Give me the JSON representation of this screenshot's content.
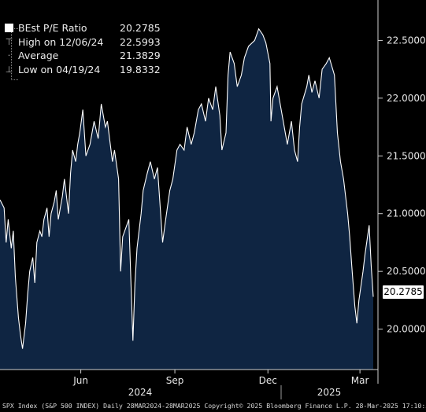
{
  "chart_data": {
    "type": "area",
    "title": "",
    "xlabel": "",
    "ylabel": "",
    "ylim": [
      19.65,
      22.85
    ],
    "y_ticks": [
      "20.0000",
      "20.5000",
      "21.0000",
      "21.5000",
      "22.0000",
      "22.5000"
    ],
    "x_tick_labels": [
      "Jun",
      "Sep",
      "Dec",
      "Mar"
    ],
    "x_year_labels": [
      "2024",
      "2025"
    ],
    "grid": false,
    "legend_placement": "top-left",
    "colors": {
      "fill": "#0f2542",
      "line": "#ffffff",
      "background": "#000000"
    },
    "legend": [
      {
        "label": "BEst P/E Ratio",
        "value": "20.2785",
        "icon": "white-square-icon"
      },
      {
        "label": "High on 12/06/24",
        "value": "22.5993",
        "icon": "high-marker-icon"
      },
      {
        "label": "Average",
        "value": "21.3829",
        "icon": "average-marker-icon"
      },
      {
        "label": "Low on 04/19/24",
        "value": "19.8332",
        "icon": "low-marker-icon"
      }
    ],
    "last_value_label": "20.2785",
    "series": [
      {
        "name": "BEst P/E Ratio",
        "x": [
          "2024-03-28",
          "2024-04-01",
          "2024-04-03",
          "2024-04-05",
          "2024-04-08",
          "2024-04-10",
          "2024-04-12",
          "2024-04-15",
          "2024-04-17",
          "2024-04-19",
          "2024-04-22",
          "2024-04-24",
          "2024-04-26",
          "2024-04-29",
          "2024-05-01",
          "2024-05-03",
          "2024-05-06",
          "2024-05-08",
          "2024-05-10",
          "2024-05-13",
          "2024-05-15",
          "2024-05-17",
          "2024-05-20",
          "2024-05-22",
          "2024-05-24",
          "2024-05-28",
          "2024-05-30",
          "2024-06-03",
          "2024-06-05",
          "2024-06-07",
          "2024-06-10",
          "2024-06-12",
          "2024-06-14",
          "2024-06-17",
          "2024-06-20",
          "2024-06-24",
          "2024-06-26",
          "2024-06-28",
          "2024-07-02",
          "2024-07-05",
          "2024-07-09",
          "2024-07-11",
          "2024-07-16",
          "2024-07-18",
          "2024-07-22",
          "2024-07-24",
          "2024-07-26",
          "2024-07-30",
          "2024-08-01",
          "2024-08-05",
          "2024-08-07",
          "2024-08-09",
          "2024-08-13",
          "2024-08-15",
          "2024-08-19",
          "2024-08-22",
          "2024-08-26",
          "2024-08-29",
          "2024-09-03",
          "2024-09-06",
          "2024-09-10",
          "2024-09-13",
          "2024-09-17",
          "2024-09-20",
          "2024-09-24",
          "2024-09-27",
          "2024-10-01",
          "2024-10-04",
          "2024-10-08",
          "2024-10-11",
          "2024-10-15",
          "2024-10-18",
          "2024-10-22",
          "2024-10-25",
          "2024-10-29",
          "2024-10-31",
          "2024-11-04",
          "2024-11-06",
          "2024-11-08",
          "2024-11-12",
          "2024-11-15",
          "2024-11-19",
          "2024-11-22",
          "2024-11-26",
          "2024-12-02",
          "2024-12-06",
          "2024-12-10",
          "2024-12-13",
          "2024-12-17",
          "2024-12-18",
          "2024-12-20",
          "2024-12-24",
          "2024-12-27",
          "2024-12-31",
          "2025-01-03",
          "2025-01-07",
          "2025-01-10",
          "2025-01-13",
          "2025-01-15",
          "2025-01-17",
          "2025-01-22",
          "2025-01-24",
          "2025-01-27",
          "2025-01-30",
          "2025-02-03",
          "2025-02-06",
          "2025-02-10",
          "2025-02-13",
          "2025-02-18",
          "2025-02-21",
          "2025-02-24",
          "2025-02-27",
          "2025-03-03",
          "2025-03-05",
          "2025-03-07",
          "2025-03-10",
          "2025-03-12",
          "2025-03-14",
          "2025-03-18",
          "2025-03-20",
          "2025-03-24",
          "2025-03-26",
          "2025-03-28"
        ],
        "values": [
          21.12,
          21.05,
          20.75,
          20.95,
          20.7,
          20.85,
          20.45,
          20.1,
          19.95,
          19.83,
          20.05,
          20.3,
          20.5,
          20.62,
          20.4,
          20.75,
          20.85,
          20.8,
          20.95,
          21.05,
          20.8,
          21.0,
          21.1,
          21.2,
          20.95,
          21.15,
          21.3,
          21.0,
          21.35,
          21.55,
          21.45,
          21.6,
          21.7,
          21.9,
          21.5,
          21.6,
          21.7,
          21.8,
          21.65,
          21.95,
          21.75,
          21.8,
          21.45,
          21.55,
          21.3,
          20.5,
          20.8,
          20.9,
          20.95,
          19.9,
          20.4,
          20.7,
          21.0,
          21.2,
          21.35,
          21.45,
          21.3,
          21.4,
          20.75,
          20.95,
          21.2,
          21.3,
          21.55,
          21.6,
          21.55,
          21.75,
          21.6,
          21.7,
          21.9,
          21.95,
          21.8,
          22.0,
          21.9,
          22.1,
          21.85,
          21.55,
          21.7,
          22.2,
          22.4,
          22.3,
          22.1,
          22.2,
          22.35,
          22.45,
          22.5,
          22.6,
          22.55,
          22.48,
          22.3,
          21.8,
          22.0,
          22.1,
          21.95,
          21.75,
          21.6,
          21.8,
          21.55,
          21.45,
          21.75,
          21.95,
          22.1,
          22.2,
          22.05,
          22.15,
          22.0,
          22.25,
          22.3,
          22.35,
          22.2,
          21.7,
          21.45,
          21.3,
          21.0,
          20.8,
          20.55,
          20.2,
          20.05,
          20.25,
          20.5,
          20.65,
          20.9,
          20.55,
          20.28
        ]
      }
    ]
  },
  "footer": {
    "text": "SPX Index (S&P 500 INDEX)  Daily 28MAR2024-28MAR2025  Copyright© 2025 Bloomberg Finance L.P.  28-Mar-2025 17:10:57"
  }
}
